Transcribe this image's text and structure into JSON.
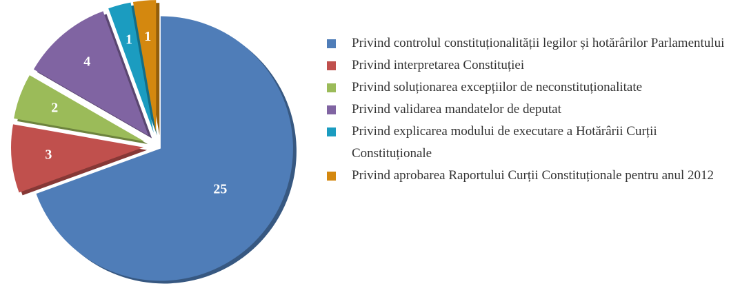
{
  "chart_data": {
    "type": "pie",
    "categories": [
      "Privind controlul constituționalității legilor și hotărârilor Parlamentului",
      "Privind interpretarea Constituției",
      "Privind soluționarea excepțiilor de neconstituționalitate",
      "Privind validarea mandatelor de deputat",
      "Privind explicarea modului de executare a Hotărârii Curții Constituționale",
      "Privind aprobarea Raportului Curții Constituționale pentru anul 2012"
    ],
    "values": [
      25,
      3,
      2,
      4,
      1,
      1
    ],
    "colors": [
      "#4f7db8",
      "#c0504d",
      "#9bbb59",
      "#8064a2",
      "#1b9cc0",
      "#d4880f"
    ],
    "legend": "right"
  }
}
